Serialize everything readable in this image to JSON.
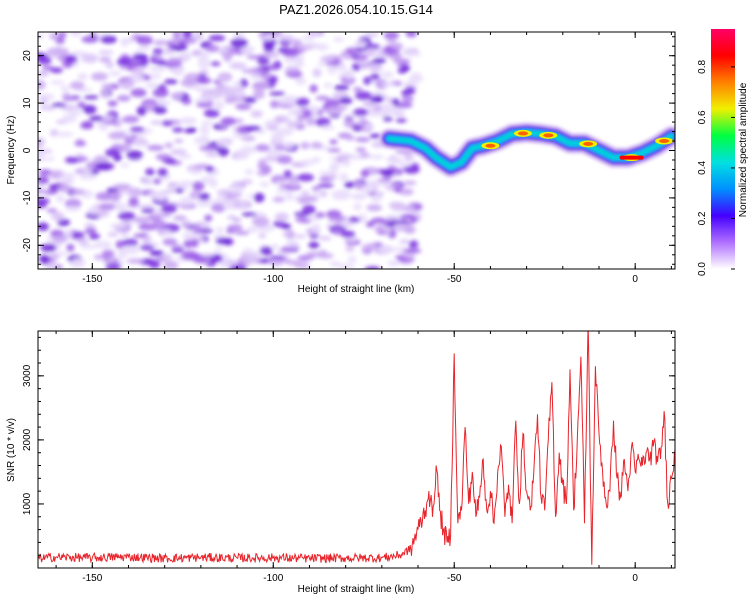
{
  "title": "PAZ1.2026.054.10.15.G14",
  "chart_data": [
    {
      "type": "heatmap",
      "xlabel": "Height of straight line (km)",
      "ylabel": "Frequency (Hz)",
      "xlim": [
        -165,
        11
      ],
      "ylim": [
        -25,
        25
      ],
      "x_ticks": [
        -150,
        -100,
        -50,
        0
      ],
      "x_tick_labels": [
        "-150",
        "-100",
        "-50",
        "0"
      ],
      "y_ticks": [
        -20,
        -10,
        0,
        10,
        20
      ],
      "y_tick_labels": [
        "-20",
        "-10",
        "0",
        "10",
        "20"
      ],
      "noise_region_x": [
        -165,
        -63
      ],
      "signal_ridge": {
        "x": [
          -68,
          -62,
          -58,
          -55,
          -51,
          -48,
          -45,
          -42,
          -38,
          -34,
          -30,
          -26,
          -22,
          -18,
          -14,
          -10,
          -6,
          -2,
          2,
          6,
          10
        ],
        "frequency": [
          2.5,
          2.0,
          0.5,
          -1.5,
          -3.5,
          -2.5,
          0.5,
          1.0,
          2.0,
          3.5,
          3.8,
          3.5,
          3.0,
          1.5,
          1.5,
          0.0,
          -1.5,
          -1.5,
          -0.5,
          1.0,
          3.0
        ]
      },
      "colorbar": {
        "label": "Normalized spectral amplitude",
        "range": [
          0,
          0.95
        ],
        "ticks": [
          0.0,
          0.2,
          0.4,
          0.6,
          0.8
        ],
        "tick_labels": [
          "0.0",
          "0.2",
          "0.4",
          "0.6",
          "0.8"
        ],
        "colors": [
          "#ffffff",
          "#b070ff",
          "#4400ff",
          "#0090ff",
          "#00e0e0",
          "#00ff40",
          "#f0f000",
          "#ff8000",
          "#ff0000",
          "#ff0066"
        ]
      }
    },
    {
      "type": "line",
      "xlabel": "Height of straight line (km)",
      "ylabel": "SNR (10 * v/v)",
      "xlim": [
        -165,
        11
      ],
      "ylim": [
        0,
        3700
      ],
      "x_ticks": [
        -150,
        -100,
        -50,
        0
      ],
      "x_tick_labels": [
        "-150",
        "-100",
        "-50",
        "0"
      ],
      "y_ticks": [
        1000,
        2000,
        3000
      ],
      "y_tick_labels": [
        "1000",
        "2000",
        "3000"
      ],
      "series": [
        {
          "name": "SNR",
          "color": "#e8242b",
          "x": [
            -165,
            -160,
            -150,
            -140,
            -130,
            -120,
            -110,
            -100,
            -90,
            -80,
            -70,
            -65,
            -62,
            -60,
            -58,
            -57,
            -56,
            -55,
            -54,
            -53,
            -52,
            -51,
            -50,
            -49,
            -48,
            -47,
            -46,
            -45,
            -44,
            -43,
            -42,
            -41,
            -40,
            -39,
            -38,
            -37,
            -36,
            -35,
            -34,
            -33,
            -32,
            -31,
            -30,
            -29,
            -28,
            -27,
            -26,
            -25,
            -24,
            -23,
            -22,
            -21,
            -20,
            -19,
            -18,
            -17,
            -16,
            -15,
            -14,
            -13,
            -12,
            -11,
            -10,
            -9,
            -8,
            -7,
            -6,
            -5,
            -4,
            -3,
            -2,
            -1,
            0,
            1,
            2,
            3,
            4,
            5,
            6,
            7,
            8,
            9,
            10,
            11
          ],
          "values": [
            150,
            170,
            160,
            175,
            150,
            165,
            155,
            160,
            150,
            155,
            160,
            200,
            300,
            600,
            900,
            1200,
            800,
            1600,
            900,
            600,
            400,
            500,
            3350,
            700,
            900,
            2200,
            1000,
            1500,
            800,
            1100,
            1700,
            900,
            1200,
            700,
            1500,
            1900,
            800,
            1300,
            700,
            2300,
            1000,
            2100,
            1200,
            900,
            1500,
            2400,
            1100,
            900,
            2000,
            2900,
            800,
            1800,
            1300,
            1000,
            3100,
            900,
            2000,
            3300,
            700,
            3850,
            50,
            3150,
            2100,
            1500,
            1000,
            1200,
            2300,
            1400,
            1100,
            1700,
            1200,
            1900,
            1500,
            1700,
            1600,
            1800,
            1700,
            1900,
            1750,
            1700,
            2450,
            1000,
            1400,
            1850
          ]
        }
      ]
    }
  ]
}
